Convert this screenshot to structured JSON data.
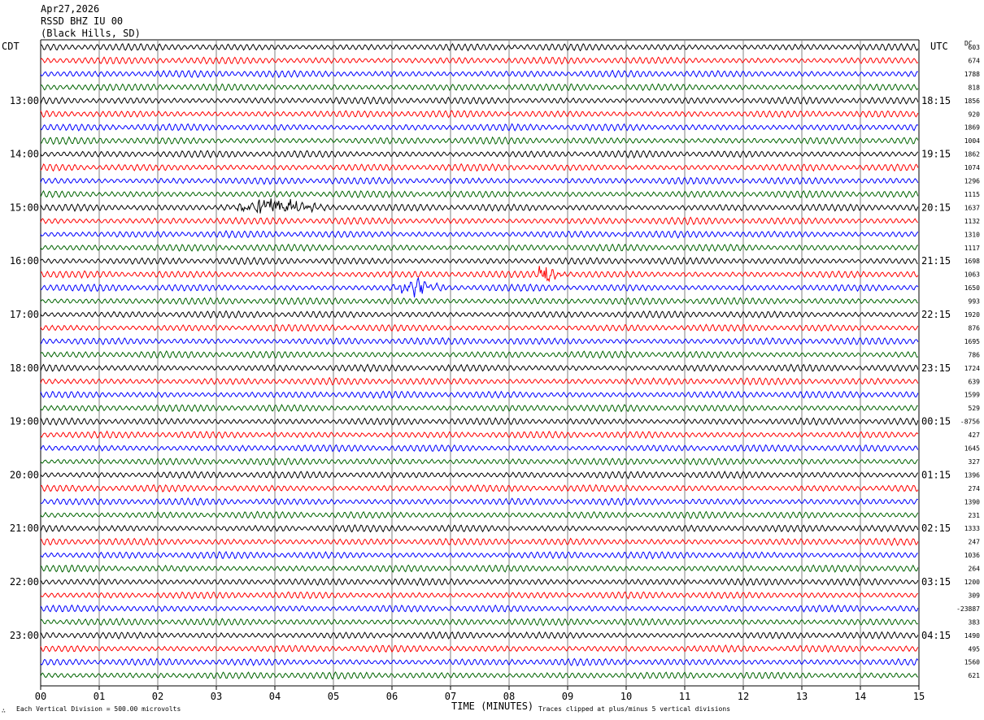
{
  "header": {
    "date": "Apr27,2026",
    "station": "RSSD BHZ IU 00",
    "location": "(Black Hills, SD)"
  },
  "left_tz": "CDT",
  "right_tz": "UTC",
  "dc_label": "DC",
  "footer": {
    "scale_note": "Each Vertical Division =  500.00 microvolts",
    "x_axis_title": "TIME (MINUTES)",
    "clip_note": "Traces clipped at plus/minus 5 vertical divisions"
  },
  "colors": {
    "row1": "#000000",
    "row2": "#ff0000",
    "row3": "#0000ff",
    "row4": "#006400",
    "grid": "#808080"
  },
  "chart_data": {
    "type": "line",
    "subtype": "helicorder",
    "xlabel": "TIME (MINUTES)",
    "xlim": [
      0,
      15
    ],
    "x_ticks": [
      "00",
      "01",
      "02",
      "03",
      "04",
      "05",
      "06",
      "07",
      "08",
      "09",
      "10",
      "11",
      "12",
      "13",
      "14",
      "15"
    ],
    "rows_per_hour": 4,
    "left_hour_labels": [
      "13:00",
      "14:00",
      "15:00",
      "16:00",
      "17:00",
      "18:00",
      "19:00",
      "20:00",
      "21:00",
      "22:00",
      "23:00"
    ],
    "right_hour_labels": [
      "18:15",
      "19:15",
      "20:15",
      "21:15",
      "22:15",
      "23:15",
      "00:15",
      "01:15",
      "02:15",
      "03:15",
      "04:15"
    ],
    "dc_offsets": [
      "603",
      "674",
      "1788",
      "818",
      "1856",
      "920",
      "1869",
      "1004",
      "1862",
      "1074",
      "1296",
      "1115",
      "1637",
      "1132",
      "1310",
      "1117",
      "1698",
      "1063",
      "1650",
      "993",
      "1920",
      "876",
      "1695",
      "786",
      "1724",
      "639",
      "1599",
      "529",
      "-8756",
      "427",
      "1645",
      "327",
      "1396",
      "274",
      "1390",
      "231",
      "1333",
      "247",
      "1036",
      "264",
      "1200",
      "309",
      "-23887",
      "383",
      "1490",
      "495",
      "1560",
      "621"
    ],
    "events": [
      {
        "row": 12,
        "start_min": 3.0,
        "end_min": 5.2,
        "peak_min": 4.0,
        "label": ""
      },
      {
        "row": 17,
        "start_min": 8.5,
        "end_min": 9.0,
        "peak_min": 8.6,
        "label": ""
      },
      {
        "row": 18,
        "start_min": 6.0,
        "end_min": 7.0,
        "peak_min": 6.4,
        "label": ""
      }
    ]
  }
}
